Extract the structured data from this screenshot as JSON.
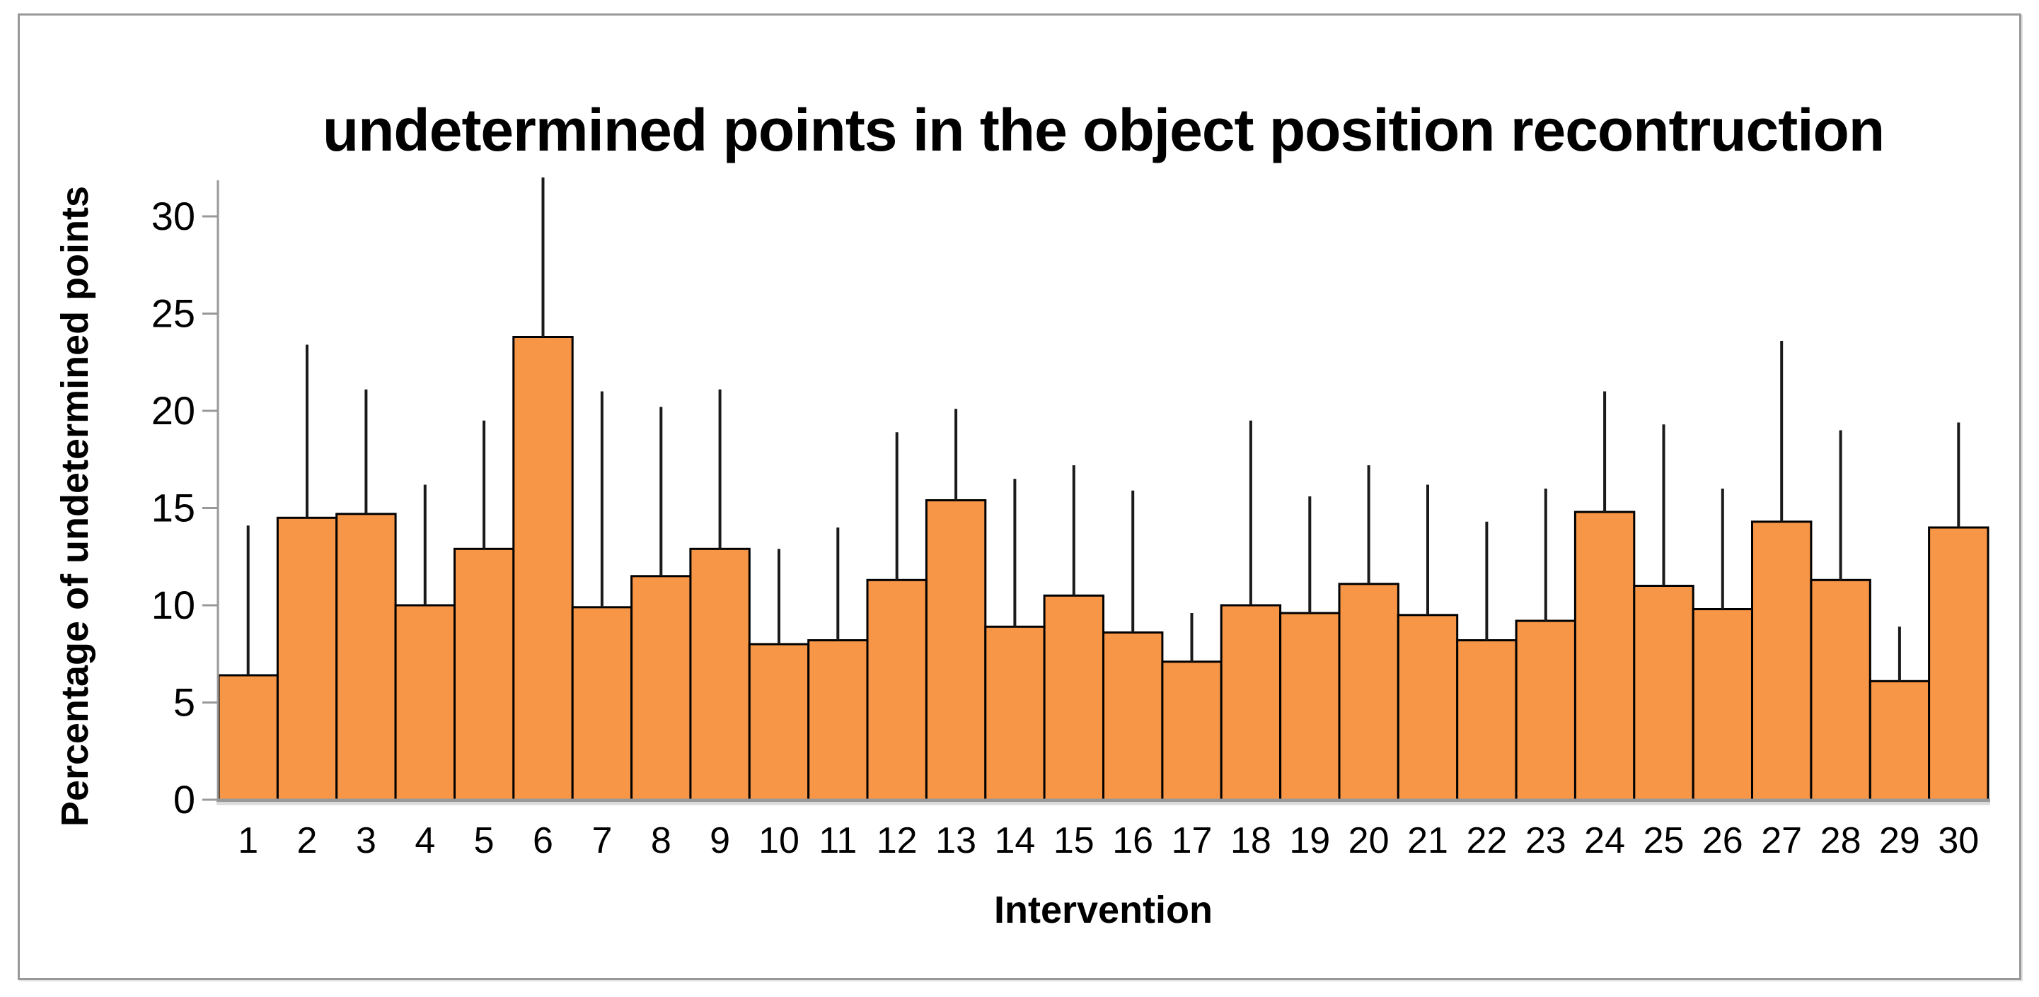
{
  "figure": {
    "title": "undetermined points in the object position recontruction"
  },
  "chart_data": {
    "type": "bar",
    "title": "undetermined points in the object position recontruction",
    "xlabel": "Intervention",
    "ylabel": "Percentage of undetermined points",
    "categories": [
      "1",
      "2",
      "3",
      "4",
      "5",
      "6",
      "7",
      "8",
      "9",
      "10",
      "11",
      "12",
      "13",
      "14",
      "15",
      "16",
      "17",
      "18",
      "19",
      "20",
      "21",
      "22",
      "23",
      "24",
      "25",
      "26",
      "27",
      "28",
      "29",
      "30"
    ],
    "values": [
      6.4,
      14.5,
      14.7,
      10.0,
      12.9,
      23.8,
      9.9,
      11.5,
      12.9,
      8.0,
      8.2,
      11.3,
      15.4,
      8.9,
      10.5,
      8.6,
      7.1,
      10.0,
      9.6,
      11.1,
      9.5,
      8.2,
      9.2,
      14.8,
      11.0,
      9.8,
      14.3,
      11.3,
      6.1,
      14.0
    ],
    "error_whisker_tops": [
      14.1,
      23.4,
      21.1,
      16.2,
      19.5,
      32.0,
      21.0,
      20.2,
      21.1,
      12.9,
      14.0,
      18.9,
      20.1,
      16.5,
      17.2,
      15.9,
      9.6,
      19.5,
      15.6,
      17.2,
      16.2,
      14.3,
      16.0,
      21.0,
      19.3,
      16.0,
      23.6,
      19.0,
      8.9,
      19.4
    ],
    "yticks": [
      0,
      5,
      10,
      15,
      20,
      25,
      30
    ],
    "ylim": [
      0,
      30
    ],
    "grid": false,
    "legend": null,
    "error_bars": "upper whiskers, no caps",
    "bar_color": "#F79646",
    "bar_border_color": "#000000",
    "error_bar_color": "#1a1a1a",
    "axis_color": "#999999",
    "axis_shadow_color": "#d9d9d9",
    "tick_label_color": "#000000",
    "frame_border_color": "#999999"
  }
}
